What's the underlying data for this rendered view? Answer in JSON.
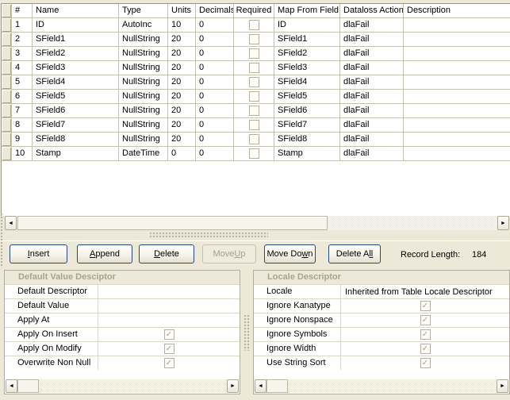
{
  "grid": {
    "columns": [
      "#",
      "Name",
      "Type",
      "Units",
      "Decimals",
      "Required",
      "Map From Field",
      "Dataloss Action",
      "Description"
    ],
    "rows": [
      {
        "num": "1",
        "name": "ID",
        "type": "AutoInc",
        "units": "10",
        "decimals": "0",
        "required": false,
        "map_from": "ID",
        "dataloss": "dlaFail",
        "description": ""
      },
      {
        "num": "2",
        "name": "SField1",
        "type": "NullString",
        "units": "20",
        "decimals": "0",
        "required": false,
        "map_from": "SField1",
        "dataloss": "dlaFail",
        "description": ""
      },
      {
        "num": "3",
        "name": "SField2",
        "type": "NullString",
        "units": "20",
        "decimals": "0",
        "required": false,
        "map_from": "SField2",
        "dataloss": "dlaFail",
        "description": ""
      },
      {
        "num": "4",
        "name": "SField3",
        "type": "NullString",
        "units": "20",
        "decimals": "0",
        "required": false,
        "map_from": "SField3",
        "dataloss": "dlaFail",
        "description": ""
      },
      {
        "num": "5",
        "name": "SField4",
        "type": "NullString",
        "units": "20",
        "decimals": "0",
        "required": false,
        "map_from": "SField4",
        "dataloss": "dlaFail",
        "description": ""
      },
      {
        "num": "6",
        "name": "SField5",
        "type": "NullString",
        "units": "20",
        "decimals": "0",
        "required": false,
        "map_from": "SField5",
        "dataloss": "dlaFail",
        "description": ""
      },
      {
        "num": "7",
        "name": "SField6",
        "type": "NullString",
        "units": "20",
        "decimals": "0",
        "required": false,
        "map_from": "SField6",
        "dataloss": "dlaFail",
        "description": ""
      },
      {
        "num": "8",
        "name": "SField7",
        "type": "NullString",
        "units": "20",
        "decimals": "0",
        "required": false,
        "map_from": "SField7",
        "dataloss": "dlaFail",
        "description": ""
      },
      {
        "num": "9",
        "name": "SField8",
        "type": "NullString",
        "units": "20",
        "decimals": "0",
        "required": false,
        "map_from": "SField8",
        "dataloss": "dlaFail",
        "description": ""
      },
      {
        "num": "10",
        "name": "Stamp",
        "type": "DateTime",
        "units": "0",
        "decimals": "0",
        "required": false,
        "map_from": "Stamp",
        "dataloss": "dlaFail",
        "description": ""
      }
    ]
  },
  "toolbar": {
    "buttons": [
      {
        "pre": "",
        "u": "I",
        "post": "nsert",
        "enabled": true
      },
      {
        "pre": "",
        "u": "A",
        "post": "ppend",
        "enabled": true
      },
      {
        "pre": "",
        "u": "D",
        "post": "elete",
        "enabled": true
      },
      {
        "pre": "Move ",
        "u": "U",
        "post": "p",
        "enabled": false
      },
      {
        "pre": "Move Do",
        "u": "w",
        "post": "n",
        "enabled": true
      },
      {
        "pre": "Delete A",
        "u": "ll",
        "post": "",
        "enabled": true
      }
    ],
    "record_length_label": "Record Length:",
    "record_length_value": "184"
  },
  "panels": {
    "default_value": {
      "title": "Default Value Desciptor",
      "rows": [
        {
          "label": "Default Descriptor",
          "value": ""
        },
        {
          "label": "Default Value",
          "value": ""
        },
        {
          "label": "Apply At",
          "value": ""
        },
        {
          "label": "Apply On Insert",
          "checked": true
        },
        {
          "label": "Apply On Modify",
          "checked": true
        },
        {
          "label": "Overwrite Non Null",
          "checked": true
        }
      ]
    },
    "locale": {
      "title": "Locale Descriptor",
      "rows": [
        {
          "label": "Locale",
          "value": "Inherited from Table Locale Descriptor"
        },
        {
          "label": "Ignore Kanatype",
          "checked": true
        },
        {
          "label": "Ignore Nonspace",
          "checked": true
        },
        {
          "label": "Ignore Symbols",
          "checked": true
        },
        {
          "label": "Ignore Width",
          "checked": true
        },
        {
          "label": "Use String Sort",
          "checked": true
        }
      ]
    }
  },
  "icons": {
    "scroll_left": "◄",
    "scroll_right": "►",
    "check": "✓"
  },
  "colors": {
    "background": "#ECE9D8",
    "grid_line": "#C5C2B0",
    "button_border": "#29477B",
    "disabled_text": "#A3A091",
    "panel_title_text": "#A8A491",
    "check_mark": "#A5A293"
  }
}
